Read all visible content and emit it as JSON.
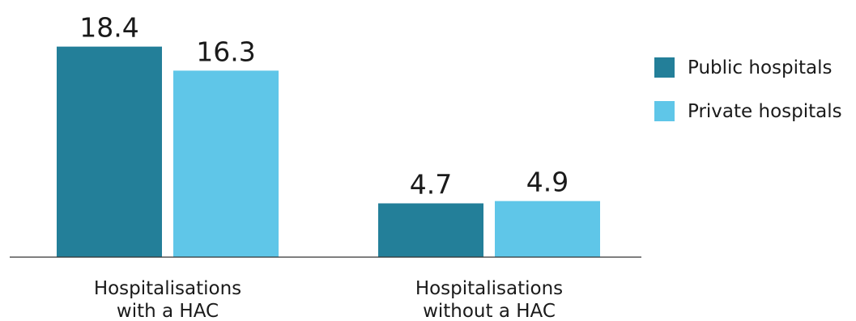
{
  "chart_data": {
    "type": "bar",
    "title": "",
    "xlabel": "",
    "ylabel": "",
    "categories": [
      [
        "Hospitalisations",
        "with a HAC"
      ],
      [
        "Hospitalisations",
        "without a HAC"
      ]
    ],
    "series": [
      {
        "name": "Public hospitals",
        "color": "#237f99",
        "values": [
          18.4,
          4.7
        ]
      },
      {
        "name": "Private hospitals",
        "color": "#5fc6e8",
        "values": [
          16.3,
          4.9
        ]
      }
    ],
    "ylim": [
      0,
      20
    ],
    "grid": false,
    "legend": "top-right"
  }
}
